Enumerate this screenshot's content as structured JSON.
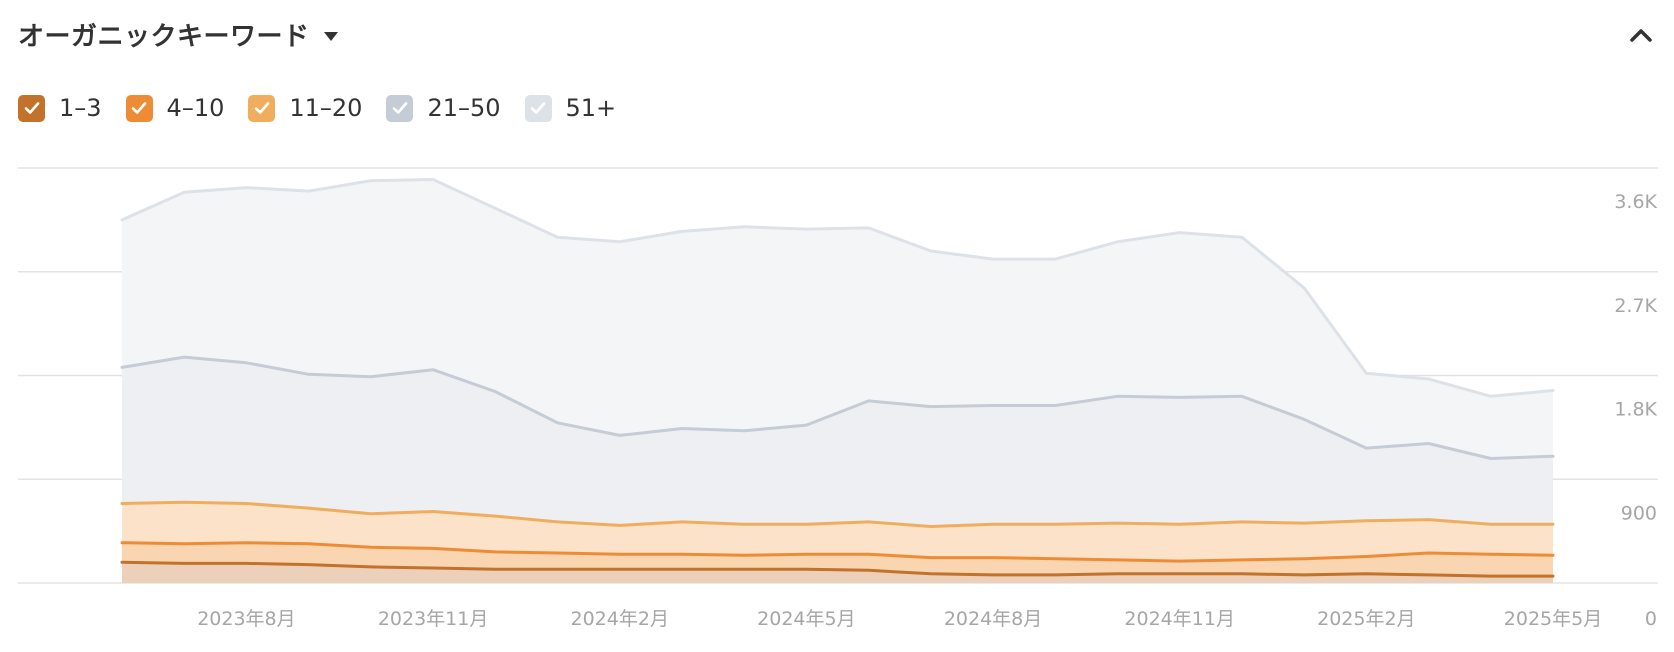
{
  "header": {
    "title": "オーガニックキーワード",
    "dropdown_icon": "caret-down-icon",
    "collapse_icon": "chevron-up-icon"
  },
  "legend": [
    {
      "label": "1–3",
      "color": "#c2722a",
      "checked": true
    },
    {
      "label": "4–10",
      "color": "#ee8c35",
      "checked": true
    },
    {
      "label": "11–20",
      "color": "#f0ad5e",
      "checked": true
    },
    {
      "label": "21–50",
      "color": "#c5ccd5",
      "checked": true
    },
    {
      "label": "51+",
      "color": "#dde2e8",
      "checked": true
    }
  ],
  "chart_data": {
    "type": "area",
    "stacked": false,
    "x": [
      "2023-06",
      "2023-07",
      "2023-08",
      "2023-09",
      "2023-10",
      "2023-11",
      "2023-12",
      "2024-01",
      "2024-02",
      "2024-03",
      "2024-04",
      "2024-05",
      "2024-06",
      "2024-07",
      "2024-08",
      "2024-09",
      "2024-10",
      "2024-11",
      "2024-12",
      "2025-01",
      "2025-02",
      "2025-03",
      "2025-04",
      "2025-05"
    ],
    "x_tick_labels": [
      {
        "x": "2023-08",
        "label": "2023年8月"
      },
      {
        "x": "2023-11",
        "label": "2023年11月"
      },
      {
        "x": "2024-02",
        "label": "2024年2月"
      },
      {
        "x": "2024-05",
        "label": "2024年5月"
      },
      {
        "x": "2024-08",
        "label": "2024年8月"
      },
      {
        "x": "2024-11",
        "label": "2024年11月"
      },
      {
        "x": "2025-02",
        "label": "2025年2月"
      },
      {
        "x": "2025-05",
        "label": "2025年5月"
      }
    ],
    "y_ticks": [
      {
        "value": 0,
        "label": "0"
      },
      {
        "value": 900,
        "label": "900"
      },
      {
        "value": 1800,
        "label": "1.8K"
      },
      {
        "value": 2700,
        "label": "2.7K"
      },
      {
        "value": 3600,
        "label": "3.6K"
      }
    ],
    "ylim": [
      0,
      3600
    ],
    "grid": true,
    "legend_position": "top-left",
    "series": [
      {
        "name": "51+",
        "color": "#dde2e8",
        "fill": "#f4f5f7",
        "values": [
          3150,
          3390,
          3430,
          3400,
          3490,
          3500,
          3250,
          3000,
          2960,
          3050,
          3090,
          3070,
          3080,
          2880,
          2810,
          2810,
          2960,
          3040,
          3000,
          2560,
          1820,
          1770,
          1620,
          1670
        ]
      },
      {
        "name": "21–50",
        "color": "#c5ccd5",
        "fill": "#eeeff2",
        "values": [
          1870,
          1960,
          1910,
          1810,
          1790,
          1850,
          1660,
          1390,
          1280,
          1340,
          1320,
          1370,
          1580,
          1530,
          1540,
          1540,
          1620,
          1610,
          1620,
          1420,
          1170,
          1210,
          1080,
          1100
        ]
      },
      {
        "name": "11–20",
        "color": "#f0ad5e",
        "fill": "#fbe2c9",
        "values": [
          690,
          700,
          690,
          650,
          600,
          620,
          580,
          530,
          500,
          530,
          510,
          510,
          530,
          490,
          510,
          510,
          520,
          510,
          530,
          520,
          540,
          550,
          510,
          510
        ]
      },
      {
        "name": "4–10",
        "color": "#ee8c35",
        "fill": "#f9d5b2",
        "values": [
          350,
          340,
          350,
          340,
          310,
          300,
          270,
          260,
          250,
          250,
          240,
          250,
          250,
          220,
          220,
          210,
          200,
          190,
          200,
          210,
          230,
          260,
          250,
          240
        ]
      },
      {
        "name": "1–3",
        "color": "#c2722a",
        "fill": "#ecd0ba",
        "values": [
          180,
          170,
          170,
          160,
          140,
          130,
          120,
          120,
          120,
          120,
          120,
          120,
          110,
          80,
          70,
          70,
          80,
          80,
          80,
          70,
          80,
          70,
          60,
          60
        ]
      }
    ]
  }
}
